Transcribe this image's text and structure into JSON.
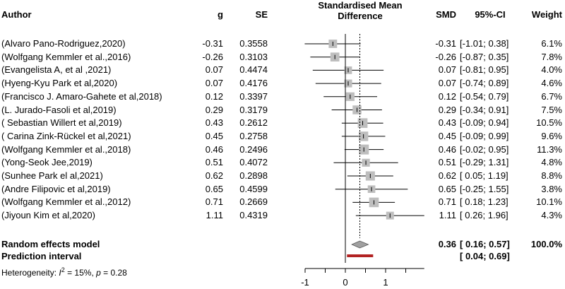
{
  "chart_data": {
    "type": "forest",
    "headers": {
      "author": "Author",
      "g": "g",
      "se": "SE",
      "plot_line1": "Standardised Mean",
      "plot_line2": "Difference",
      "smd": "SMD",
      "ci": "95%-CI",
      "weight": "Weight"
    },
    "studies": [
      {
        "author": "(Alvaro Pano-Rodriguez,2020)",
        "g": "-0.31",
        "se": "0.3558",
        "smd": "-0.31",
        "ci": "[-1.01; 0.38]",
        "weight": "6.1%",
        "est": -0.31,
        "lo": -1.01,
        "hi": 0.38,
        "w": 6.1
      },
      {
        "author": "(Wolfgang Kemmler et al.,2016)",
        "g": "-0.26",
        "se": "0.3103",
        "smd": "-0.26",
        "ci": "[-0.87; 0.35]",
        "weight": "7.8%",
        "est": -0.26,
        "lo": -0.87,
        "hi": 0.35,
        "w": 7.8
      },
      {
        "author": "(Evangelista A, et al ,2021)",
        "g": "0.07",
        "se": "0.4474",
        "smd": "0.07",
        "ci": "[-0.81; 0.95]",
        "weight": "4.0%",
        "est": 0.07,
        "lo": -0.81,
        "hi": 0.95,
        "w": 4.0
      },
      {
        "author": "(Hyeng-Kyu Park et al,2020)",
        "g": "0.07",
        "se": "0.4176",
        "smd": "0.07",
        "ci": "[-0.74; 0.89]",
        "weight": "4.6%",
        "est": 0.07,
        "lo": -0.74,
        "hi": 0.89,
        "w": 4.6
      },
      {
        "author": "(Francisco J. Amaro-Gahete et al,2018)",
        "g": "0.12",
        "se": "0.3397",
        "smd": "0.12",
        "ci": "[-0.54; 0.79]",
        "weight": "6.7%",
        "est": 0.12,
        "lo": -0.54,
        "hi": 0.79,
        "w": 6.7
      },
      {
        "author": "(L. Jurado-Fasoli et al,2019)",
        "g": "0.29",
        "se": "0.3179",
        "smd": "0.29",
        "ci": "[-0.34; 0.91]",
        "weight": "7.5%",
        "est": 0.29,
        "lo": -0.34,
        "hi": 0.91,
        "w": 7.5
      },
      {
        "author": "( Sebastian Willert et al,2019)",
        "g": "0.43",
        "se": "0.2612",
        "smd": "0.43",
        "ci": "[-0.09; 0.94]",
        "weight": "10.5%",
        "est": 0.43,
        "lo": -0.09,
        "hi": 0.94,
        "w": 10.5
      },
      {
        "author": "( Carina Zink-Rückel et al,2021)",
        "g": "0.45",
        "se": "0.2758",
        "smd": "0.45",
        "ci": "[-0.09; 0.99]",
        "weight": "9.6%",
        "est": 0.45,
        "lo": -0.09,
        "hi": 0.99,
        "w": 9.6
      },
      {
        "author": "(Wolfgang Kemmler et al.,2018)",
        "g": "0.46",
        "se": "0.2496",
        "smd": "0.46",
        "ci": "[-0.02; 0.95]",
        "weight": "11.3%",
        "est": 0.46,
        "lo": -0.02,
        "hi": 0.95,
        "w": 11.3
      },
      {
        "author": "(Yong-Seok Jee,2019)",
        "g": "0.51",
        "se": "0.4072",
        "smd": "0.51",
        "ci": "[-0.29; 1.31]",
        "weight": "4.8%",
        "est": 0.51,
        "lo": -0.29,
        "hi": 1.31,
        "w": 4.8
      },
      {
        "author": "(Sunhee Park el al,2021)",
        "g": "0.62",
        "se": "0.2898",
        "smd": "0.62",
        "ci": "[ 0.05; 1.19]",
        "weight": "8.8%",
        "est": 0.62,
        "lo": 0.05,
        "hi": 1.19,
        "w": 8.8
      },
      {
        "author": "(Andre Filipovic et al,2019)",
        "g": "0.65",
        "se": "0.4599",
        "smd": "0.65",
        "ci": "[-0.25; 1.55]",
        "weight": "3.8%",
        "est": 0.65,
        "lo": -0.25,
        "hi": 1.55,
        "w": 3.8
      },
      {
        "author": "(Wolfgang Kemmler et al.,2012)",
        "g": "0.71",
        "se": "0.2669",
        "smd": "0.71",
        "ci": "[ 0.18; 1.23]",
        "weight": "10.1%",
        "est": 0.71,
        "lo": 0.18,
        "hi": 1.23,
        "w": 10.1
      },
      {
        "author": "(Jiyoun Kim et al,2020)",
        "g": "1.11",
        "se": "0.4319",
        "smd": "1.11",
        "ci": "[ 0.26; 1.96]",
        "weight": "4.3%",
        "est": 1.11,
        "lo": 0.26,
        "hi": 1.96,
        "w": 4.3
      }
    ],
    "random_effects": {
      "label": "Random effects model",
      "smd": "0.36",
      "ci": "[ 0.16; 0.57]",
      "weight": "100.0%",
      "est": 0.36,
      "lo": 0.16,
      "hi": 0.57
    },
    "prediction": {
      "label": "Prediction interval",
      "ci": "[ 0.04; 0.69]",
      "lo": 0.04,
      "hi": 0.69
    },
    "heterogeneity": {
      "prefix": "Heterogeneity: ",
      "i2_symbol": "I",
      "i2_sup": "2",
      "rest": " = 15%, ",
      "p_symbol": "p",
      "p_rest": " = 0.28"
    },
    "xaxis": {
      "ticks": [
        -1,
        0,
        1
      ],
      "tick_labels": [
        "-1",
        "0",
        "1"
      ],
      "range": [
        -1,
        1.96
      ]
    },
    "colors": {
      "square": "#bebebe",
      "diamond": "#a0a0a0",
      "prediction": "#b22222",
      "line": "#000000"
    }
  }
}
